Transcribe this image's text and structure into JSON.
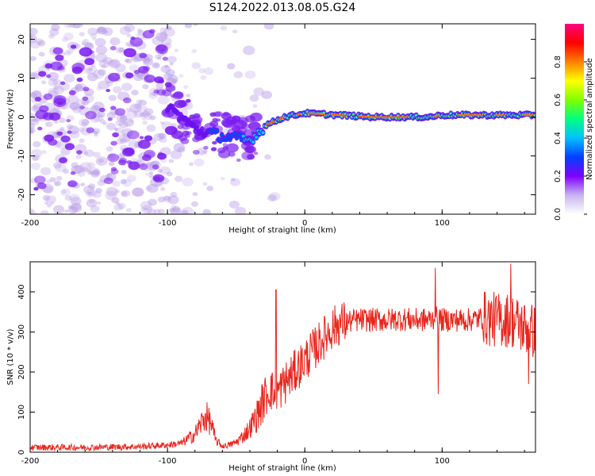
{
  "title": "S124.2022.013.08.05.G24",
  "chart_data": [
    {
      "type": "heatmap",
      "xlabel": "Height of straight line (km)",
      "ylabel": "Frequency (Hz)",
      "xlim": [
        -200,
        168
      ],
      "ylim": [
        -25,
        24
      ],
      "xticks": [
        -200,
        -100,
        0,
        100
      ],
      "yticks": [
        -20,
        -10,
        0,
        10,
        20
      ],
      "colorbar": {
        "label": "Normalized spectral amplitude",
        "range": [
          0,
          1
        ],
        "ticks": [
          "0.0",
          "0.2",
          "0.4",
          "0.6",
          "0.8"
        ],
        "colors": [
          "#ffffff",
          "#c8b4f0",
          "#8000ff",
          "#0040ff",
          "#00c0ff",
          "#00ff80",
          "#80ff00",
          "#ffff00",
          "#ff8000",
          "#ff0000",
          "#ff0080"
        ]
      },
      "ridge": [
        {
          "x": -100,
          "y": 3
        },
        {
          "x": -80,
          "y": -3
        },
        {
          "x": -60,
          "y": -5
        },
        {
          "x": -40,
          "y": -6
        },
        {
          "x": -28,
          "y": -2
        },
        {
          "x": -15,
          "y": 0
        },
        {
          "x": 0,
          "y": 1
        },
        {
          "x": 50,
          "y": 0
        },
        {
          "x": 90,
          "y": 0
        },
        {
          "x": 100,
          "y": 0.5
        },
        {
          "x": 168,
          "y": 0.5
        }
      ]
    },
    {
      "type": "line",
      "xlabel": "Height of straight line (km)",
      "ylabel": "SNR (10 * v/v)",
      "xlim": [
        -200,
        168
      ],
      "ylim": [
        0,
        475
      ],
      "xticks": [
        -200,
        -100,
        0,
        100
      ],
      "yticks": [
        0,
        100,
        200,
        300,
        400
      ],
      "color": "#e8261c",
      "series": [
        {
          "x": [
            -200,
            -180,
            -160,
            -140,
            -120,
            -100,
            -90,
            -80,
            -75,
            -72,
            -68,
            -65,
            -60,
            -55,
            -50,
            -45,
            -40,
            -35,
            -30,
            -27,
            -25,
            -22,
            -20,
            -15,
            -10,
            -5,
            0,
            5,
            10,
            15,
            20,
            25,
            30,
            40,
            50,
            60,
            70,
            80,
            90,
            95,
            100,
            110,
            120,
            130,
            140,
            150,
            160,
            168
          ],
          "y": [
            12,
            12,
            12,
            13,
            14,
            18,
            22,
            45,
            75,
            90,
            70,
            30,
            15,
            18,
            25,
            40,
            60,
            90,
            130,
            150,
            160,
            140,
            150,
            170,
            190,
            210,
            230,
            250,
            270,
            290,
            310,
            320,
            325,
            330,
            330,
            330,
            332,
            330,
            330,
            335,
            330,
            330,
            330,
            335,
            330,
            330,
            310,
            300
          ]
        }
      ],
      "spikes": [
        {
          "x": -21,
          "y": 405
        },
        {
          "x": 95,
          "y": 460
        },
        {
          "x": 97,
          "y": 145
        },
        {
          "x": 150,
          "y": 470
        },
        {
          "x": 163,
          "y": 170
        }
      ]
    }
  ]
}
